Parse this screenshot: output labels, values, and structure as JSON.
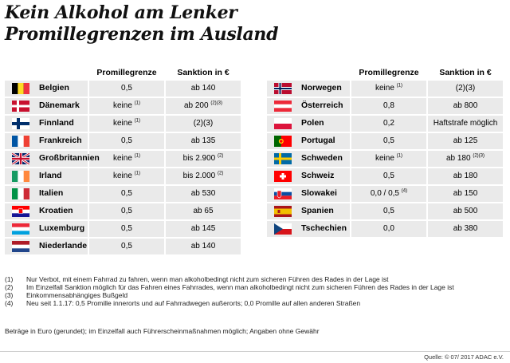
{
  "title": {
    "line1": "Kein Alkohol am Lenker",
    "line2": "Promillegrenzen im Ausland"
  },
  "headers": {
    "limit": "Promillegrenze",
    "sanction": "Sanktion in €"
  },
  "left_rows": [
    {
      "country": "Belgien",
      "flag": "flag-belgium-icon",
      "limit": "0,5",
      "limit_note": "",
      "sanction": "ab 140",
      "sanction_note": ""
    },
    {
      "country": "Dänemark",
      "flag": "flag-denmark-icon",
      "limit": "keine",
      "limit_note": "(1)",
      "sanction": "ab 200",
      "sanction_note": "(2)(3)"
    },
    {
      "country": "Finnland",
      "flag": "flag-finland-icon",
      "limit": "keine",
      "limit_note": "(1)",
      "sanction": "(2)(3)",
      "sanction_note": ""
    },
    {
      "country": "Frankreich",
      "flag": "flag-france-icon",
      "limit": "0,5",
      "limit_note": "",
      "sanction": "ab 135",
      "sanction_note": ""
    },
    {
      "country": "Großbritannien",
      "flag": "flag-uk-icon",
      "limit": "keine",
      "limit_note": "(1)",
      "sanction": "bis 2.900",
      "sanction_note": "(2)"
    },
    {
      "country": "Irland",
      "flag": "flag-ireland-icon",
      "limit": "keine",
      "limit_note": "(1)",
      "sanction": "bis 2.000",
      "sanction_note": "(2)"
    },
    {
      "country": "Italien",
      "flag": "flag-italy-icon",
      "limit": "0,5",
      "limit_note": "",
      "sanction": "ab 530",
      "sanction_note": ""
    },
    {
      "country": "Kroatien",
      "flag": "flag-croatia-icon",
      "limit": "0,5",
      "limit_note": "",
      "sanction": "ab 65",
      "sanction_note": ""
    },
    {
      "country": "Luxemburg",
      "flag": "flag-luxembourg-icon",
      "limit": "0,5",
      "limit_note": "",
      "sanction": "ab 145",
      "sanction_note": ""
    },
    {
      "country": "Niederlande",
      "flag": "flag-netherlands-icon",
      "limit": "0,5",
      "limit_note": "",
      "sanction": "ab 140",
      "sanction_note": ""
    }
  ],
  "right_rows": [
    {
      "country": "Norwegen",
      "flag": "flag-norway-icon",
      "limit": "keine",
      "limit_note": "(1)",
      "sanction": "(2)(3)",
      "sanction_note": ""
    },
    {
      "country": "Österreich",
      "flag": "flag-austria-icon",
      "limit": "0,8",
      "limit_note": "",
      "sanction": "ab 800",
      "sanction_note": ""
    },
    {
      "country": "Polen",
      "flag": "flag-poland-icon",
      "limit": "0,2",
      "limit_note": "",
      "sanction": "Haftstrafe möglich",
      "sanction_note": ""
    },
    {
      "country": "Portugal",
      "flag": "flag-portugal-icon",
      "limit": "0,5",
      "limit_note": "",
      "sanction": "ab 125",
      "sanction_note": ""
    },
    {
      "country": "Schweden",
      "flag": "flag-sweden-icon",
      "limit": "keine",
      "limit_note": "(1)",
      "sanction": "ab 180",
      "sanction_note": "(2)(3)"
    },
    {
      "country": "Schweiz",
      "flag": "flag-switzerland-icon",
      "limit": "0,5",
      "limit_note": "",
      "sanction": "ab 180",
      "sanction_note": ""
    },
    {
      "country": "Slowakei",
      "flag": "flag-slovakia-icon",
      "limit": "0,0 / 0,5",
      "limit_note": "(4)",
      "sanction": "ab 150",
      "sanction_note": ""
    },
    {
      "country": "Spanien",
      "flag": "flag-spain-icon",
      "limit": "0,5",
      "limit_note": "",
      "sanction": "ab 500",
      "sanction_note": ""
    },
    {
      "country": "Tschechien",
      "flag": "flag-czech-icon",
      "limit": "0,0",
      "limit_note": "",
      "sanction": "ab 380",
      "sanction_note": ""
    }
  ],
  "notes": [
    {
      "key": "(1)",
      "text": "Nur Verbot, mit einem Fahrrad zu fahren, wenn man alkoholbedingt nicht zum sicheren Führen des Rades in der Lage ist"
    },
    {
      "key": "(2)",
      "text": "Im Einzelfall Sanktion möglich für das Fahren eines Fahrrades, wenn man alkoholbedingt nicht zum sicheren Führen des Rades in der Lage ist"
    },
    {
      "key": "(3)",
      "text": "Einkommensabhängiges Bußgeld"
    },
    {
      "key": "(4)",
      "text": "Neu seit 1.1.17: 0,5 Promille innerorts und auf Fahrradwegen außerorts; 0,0 Promille auf allen anderen Straßen"
    }
  ],
  "footer_note": "Beträge in Euro (gerundet); im Einzelfall auch Führerscheinmaßnahmen möglich; Angaben ohne Gewähr",
  "source": "Quelle: © 07/ 2017 ADAC e.V."
}
